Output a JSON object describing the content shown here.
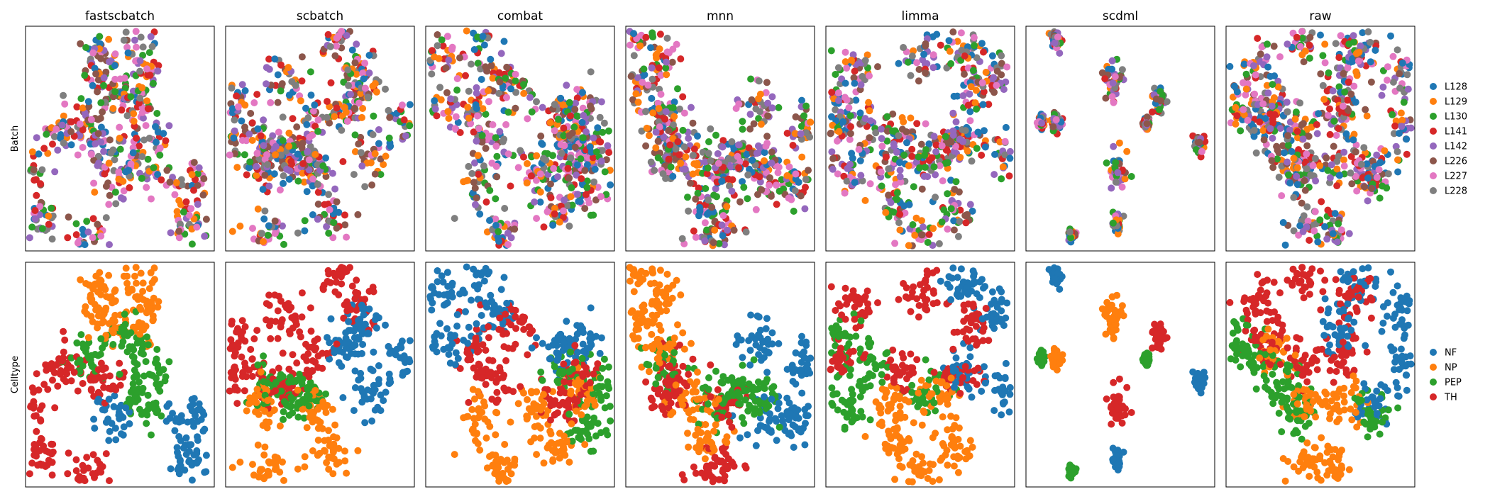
{
  "chart_data": {
    "type": "scatter",
    "columns": [
      "fastscbatch",
      "scbatch",
      "combat",
      "mnn",
      "limma",
      "scdml",
      "raw"
    ],
    "rows": [
      {
        "label": "Batch",
        "legend": [
          "L128",
          "L129",
          "L130",
          "L141",
          "L142",
          "L226",
          "L227",
          "L228"
        ],
        "colors": [
          "#1f77b4",
          "#ff7f0e",
          "#2ca02c",
          "#d62728",
          "#9467bd",
          "#8c564b",
          "#e377c2",
          "#7f7f7f"
        ]
      },
      {
        "label": "Celltype",
        "legend": [
          "NF",
          "NP",
          "PEP",
          "TH"
        ],
        "colors": [
          "#1f77b4",
          "#ff7f0e",
          "#2ca02c",
          "#d62728"
        ]
      }
    ],
    "embeddings": {
      "fastscbatch": {
        "NF": [
          [
            0.47,
            0.7
          ],
          [
            0.87,
            0.86
          ],
          [
            0.86,
            0.7
          ]
        ],
        "NP": [
          [
            0.4,
            0.12
          ],
          [
            0.6,
            0.08
          ],
          [
            0.62,
            0.26
          ],
          [
            0.44,
            0.28
          ]
        ],
        "PEP": [
          [
            0.34,
            0.42
          ],
          [
            0.55,
            0.35
          ],
          [
            0.65,
            0.5
          ],
          [
            0.62,
            0.62
          ]
        ],
        "TH": [
          [
            0.2,
            0.45
          ],
          [
            0.4,
            0.52
          ],
          [
            0.32,
            0.95
          ],
          [
            0.08,
            0.85
          ],
          [
            0.03,
            0.65
          ]
        ]
      },
      "scbatch": {
        "NF": [
          [
            0.72,
            0.25
          ],
          [
            0.95,
            0.42
          ],
          [
            0.78,
            0.58
          ],
          [
            0.65,
            0.38
          ]
        ],
        "NP": [
          [
            0.18,
            0.64
          ],
          [
            0.48,
            0.66
          ],
          [
            0.55,
            0.84
          ],
          [
            0.25,
            0.92
          ]
        ],
        "PEP": [
          [
            0.22,
            0.55
          ],
          [
            0.4,
            0.57
          ],
          [
            0.38,
            0.62
          ]
        ],
        "TH": [
          [
            0.06,
            0.38
          ],
          [
            0.3,
            0.25
          ],
          [
            0.6,
            0.05
          ],
          [
            0.7,
            0.18
          ],
          [
            0.45,
            0.4
          ],
          [
            0.28,
            0.56
          ],
          [
            0.05,
            0.5
          ]
        ]
      },
      "combat": {
        "NF": [
          [
            0.06,
            0.12
          ],
          [
            0.3,
            0.04
          ],
          [
            0.36,
            0.24
          ],
          [
            0.12,
            0.34
          ],
          [
            0.7,
            0.4
          ],
          [
            0.82,
            0.35
          ]
        ],
        "NP": [
          [
            0.3,
            0.7
          ],
          [
            0.6,
            0.64
          ],
          [
            0.7,
            0.82
          ],
          [
            0.4,
            0.92
          ],
          [
            0.8,
            0.58
          ]
        ],
        "PEP": [
          [
            0.75,
            0.5
          ],
          [
            0.92,
            0.55
          ],
          [
            0.86,
            0.72
          ]
        ],
        "TH": [
          [
            0.26,
            0.4
          ],
          [
            0.48,
            0.28
          ],
          [
            0.8,
            0.5
          ],
          [
            0.7,
            0.62
          ],
          [
            0.36,
            0.52
          ]
        ]
      },
      "mnn": {
        "NF": [
          [
            0.72,
            0.35
          ],
          [
            0.95,
            0.45
          ],
          [
            0.92,
            0.72
          ],
          [
            0.75,
            0.7
          ]
        ],
        "NP": [
          [
            0.05,
            0.05
          ],
          [
            0.2,
            0.15
          ],
          [
            0.18,
            0.4
          ],
          [
            0.35,
            0.62
          ],
          [
            0.42,
            0.78
          ],
          [
            0.06,
            0.28
          ]
        ],
        "PEP": [
          [
            0.2,
            0.45
          ],
          [
            0.48,
            0.6
          ],
          [
            0.72,
            0.62
          ],
          [
            0.62,
            0.55
          ]
        ],
        "TH": [
          [
            0.25,
            0.48
          ],
          [
            0.52,
            0.62
          ],
          [
            0.5,
            0.92
          ],
          [
            0.4,
            0.98
          ],
          [
            0.22,
            0.6
          ]
        ]
      },
      "limma": {
        "NF": [
          [
            0.72,
            0.1
          ],
          [
            0.9,
            0.22
          ],
          [
            0.95,
            0.55
          ],
          [
            0.72,
            0.48
          ]
        ],
        "NP": [
          [
            0.35,
            0.62
          ],
          [
            0.6,
            0.6
          ],
          [
            0.68,
            0.8
          ],
          [
            0.5,
            0.96
          ],
          [
            0.38,
            0.8
          ]
        ],
        "PEP": [
          [
            0.06,
            0.35
          ],
          [
            0.22,
            0.45
          ],
          [
            0.12,
            0.65
          ],
          [
            0.55,
            0.58
          ]
        ],
        "TH": [
          [
            0.15,
            0.2
          ],
          [
            0.5,
            0.12
          ],
          [
            0.78,
            0.28
          ],
          [
            0.7,
            0.5
          ],
          [
            0.4,
            0.48
          ],
          [
            0.08,
            0.42
          ]
        ]
      },
      "scdml": {
        "NF": [
          [
            0.16,
            0.06,
            0.03
          ],
          [
            0.92,
            0.53,
            0.03
          ],
          [
            0.48,
            0.88,
            0.03
          ]
        ],
        "NP": [
          [
            0.46,
            0.25,
            0.06
          ],
          [
            0.16,
            0.43,
            0.03
          ]
        ],
        "PEP": [
          [
            0.64,
            0.44,
            0.02
          ],
          [
            0.08,
            0.43,
            0.02
          ],
          [
            0.24,
            0.93,
            0.02
          ]
        ],
        "TH": [
          [
            0.7,
            0.33,
            0.04
          ],
          [
            0.48,
            0.65,
            0.06
          ]
        ]
      },
      "raw": {
        "NF": [
          [
            0.7,
            0.1
          ],
          [
            0.92,
            0.22
          ],
          [
            0.95,
            0.45
          ],
          [
            0.8,
            0.62
          ],
          [
            0.62,
            0.3
          ]
        ],
        "NP": [
          [
            0.42,
            0.62
          ],
          [
            0.62,
            0.62
          ],
          [
            0.58,
            0.92
          ],
          [
            0.44,
            0.88
          ],
          [
            0.25,
            0.4
          ]
        ],
        "PEP": [
          [
            0.06,
            0.32
          ],
          [
            0.12,
            0.42
          ],
          [
            0.3,
            0.55
          ],
          [
            0.38,
            0.68
          ],
          [
            0.78,
            0.7
          ]
        ],
        "TH": [
          [
            0.15,
            0.18
          ],
          [
            0.4,
            0.08
          ],
          [
            0.68,
            0.15
          ],
          [
            0.62,
            0.4
          ],
          [
            0.4,
            0.45
          ],
          [
            0.2,
            0.35
          ]
        ]
      }
    }
  }
}
